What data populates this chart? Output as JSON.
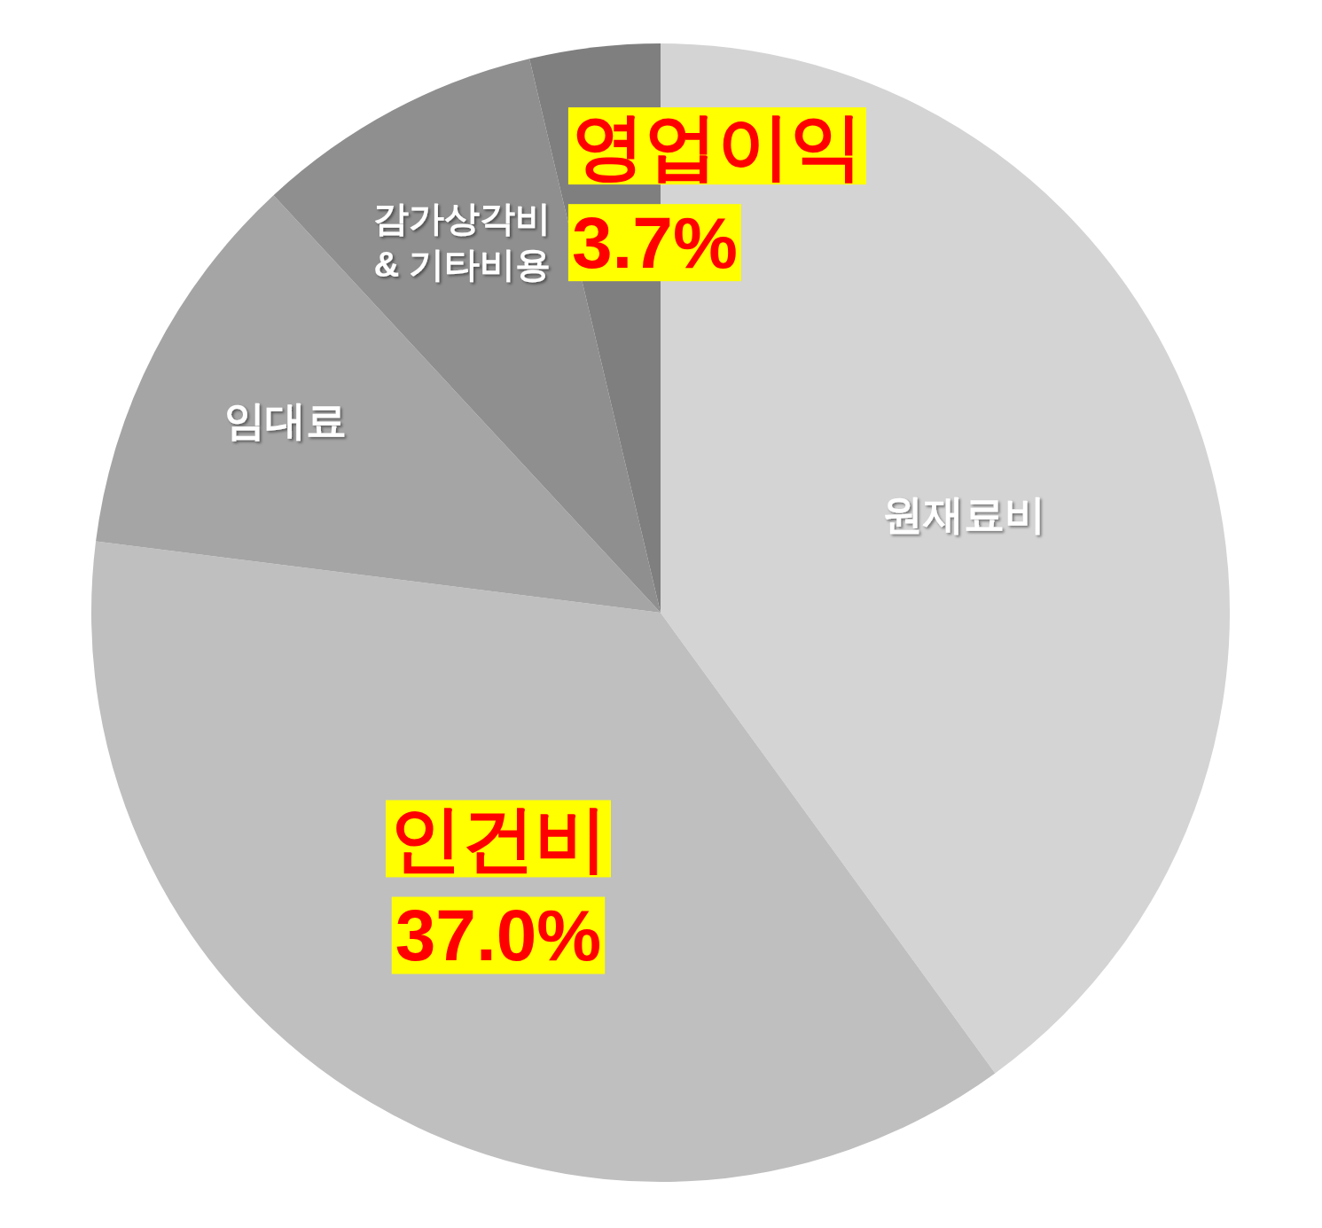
{
  "chart_data": {
    "type": "pie",
    "categories": [
      "원재료비",
      "인건비",
      "임대료",
      "감가상각비\n& 기타비용",
      "영업이익"
    ],
    "values": [
      40.0,
      37.0,
      11.1,
      8.2,
      3.7
    ],
    "colors": [
      "#d4d4d4",
      "#bfbfbf",
      "#a5a5a5",
      "#8f8f8f",
      "#7f7f7f"
    ],
    "value_labels": [
      null,
      "37.0%",
      null,
      null,
      "3.7%"
    ]
  }
}
